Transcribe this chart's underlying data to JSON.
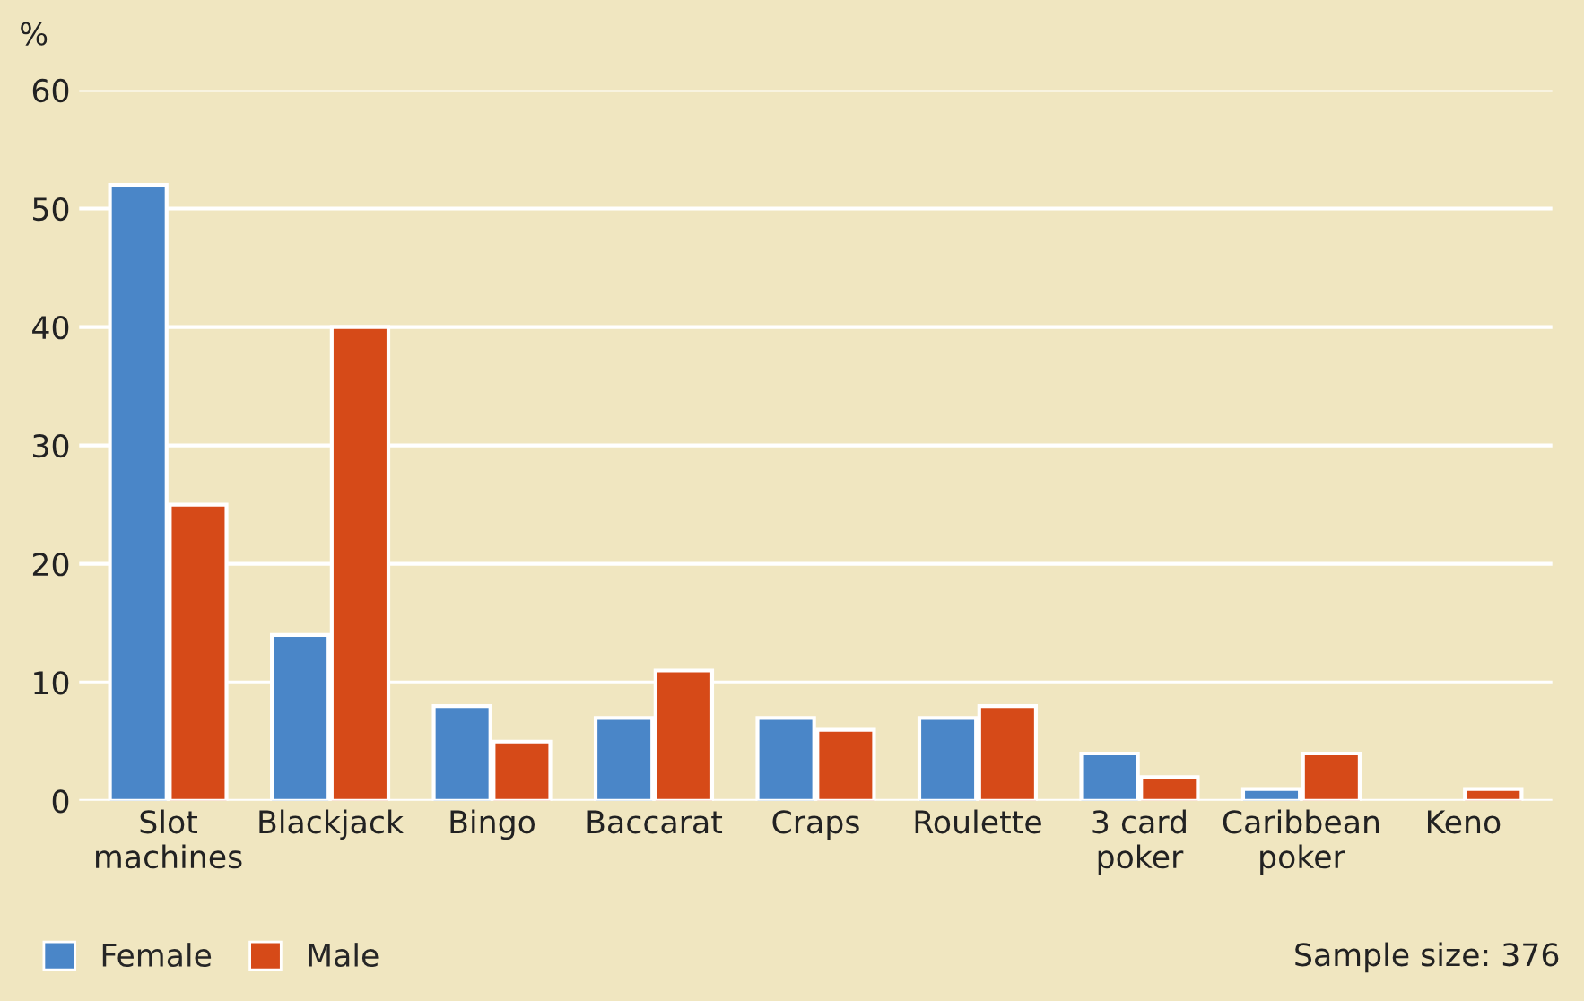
{
  "chart_data": {
    "type": "bar",
    "ylabel": "%",
    "categories": [
      "Slot\nmachines",
      "Blackjack",
      "Bingo",
      "Baccarat",
      "Craps",
      "Roulette",
      "3 card\npoker",
      "Caribbean\npoker",
      "Keno"
    ],
    "series": [
      {
        "name": "Female",
        "color": "#4a86c8",
        "values": [
          52,
          14,
          8,
          7,
          7,
          7,
          4,
          1,
          null
        ]
      },
      {
        "name": "Male",
        "color": "#d64a18",
        "values": [
          25,
          40,
          5,
          11,
          6,
          8,
          2,
          4,
          1
        ]
      }
    ],
    "ylim": [
      0,
      60
    ],
    "yticks": [
      0,
      10,
      20,
      30,
      40,
      50,
      60
    ],
    "grid": "y",
    "legend": "bottom left",
    "annotations": [
      "Sample size: 376"
    ]
  }
}
